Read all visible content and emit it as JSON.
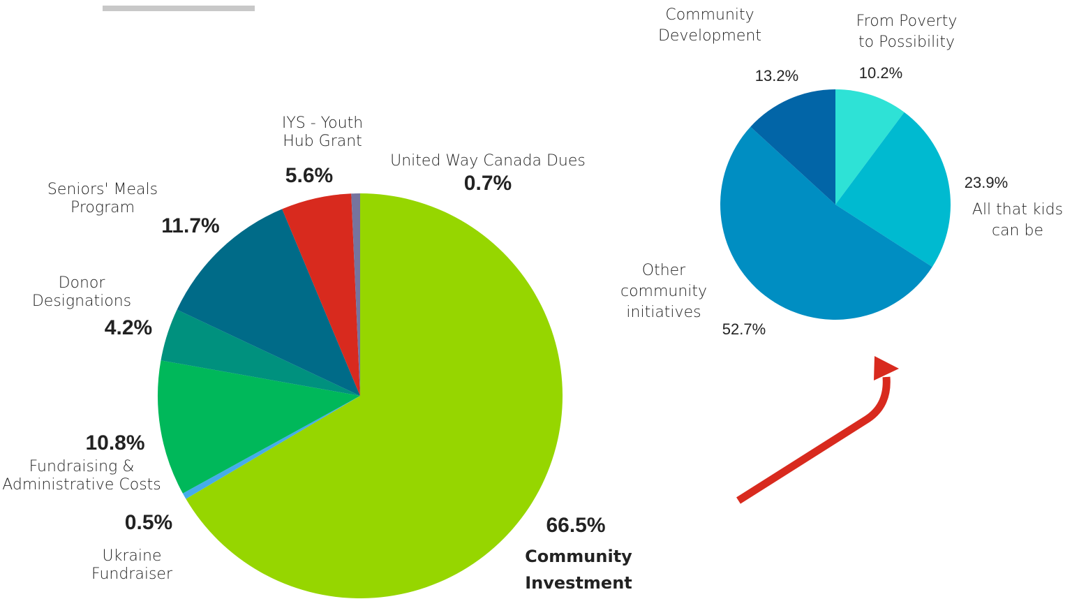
{
  "chart_data": [
    {
      "type": "pie",
      "slices": [
        {
          "label": "Community Investment",
          "value": 66.5,
          "display": "66.5%",
          "color": "#96D600",
          "label_lines": [
            "Community",
            "Investment"
          ]
        },
        {
          "label": "Ukraine Fundraiser",
          "value": 0.5,
          "display": "0.5%",
          "color": "#45ACEA",
          "label_lines": [
            "Ukraine",
            "Fundraiser"
          ]
        },
        {
          "label": "Fundraising & Administrative Costs",
          "value": 10.8,
          "display": "10.8%",
          "color": "#00B85A",
          "label_lines": [
            "Fundraising &",
            "Administrative Costs"
          ]
        },
        {
          "label": "Donor Designations",
          "value": 4.2,
          "display": "4.2%",
          "color": "#00917E",
          "label_lines": [
            "Donor",
            "Designations"
          ]
        },
        {
          "label": "Seniors' Meals Program",
          "value": 11.7,
          "display": "11.7%",
          "color": "#006B88",
          "label_lines": [
            "Seniors' Meals",
            "Program"
          ]
        },
        {
          "label": "IYS - Youth Hub Grant",
          "value": 5.6,
          "display": "5.6%",
          "color": "#D82A1E",
          "label_lines": [
            "IYS - Youth",
            "Hub Grant"
          ]
        },
        {
          "label": "United Way Canada Dues",
          "value": 0.7,
          "display": "0.7%",
          "color": "#76749E",
          "label_lines": [
            "United Way Canada Dues"
          ]
        }
      ]
    },
    {
      "type": "pie",
      "slices": [
        {
          "label": "From Poverty to Possibility",
          "value": 10.2,
          "display": "10.2%",
          "color": "#2EE2D6",
          "label_lines": [
            "From Poverty",
            "to Possibility"
          ]
        },
        {
          "label": "All that kids can be",
          "value": 23.9,
          "display": "23.9%",
          "color": "#00BAD0",
          "label_lines": [
            "All that kids",
            "can be"
          ]
        },
        {
          "label": "Other community initiatives",
          "value": 52.7,
          "display": "52.7%",
          "color": "#008EC2",
          "label_lines": [
            "Other",
            "community",
            "initiatives"
          ]
        },
        {
          "label": "Community Development",
          "value": 13.2,
          "display": "13.2%",
          "color": "#0265A7",
          "label_lines": [
            "Community",
            "Development"
          ]
        }
      ]
    }
  ],
  "decor": {
    "top_bar_color": "#C8C8C8",
    "arrow_color": "#D82A1E"
  }
}
